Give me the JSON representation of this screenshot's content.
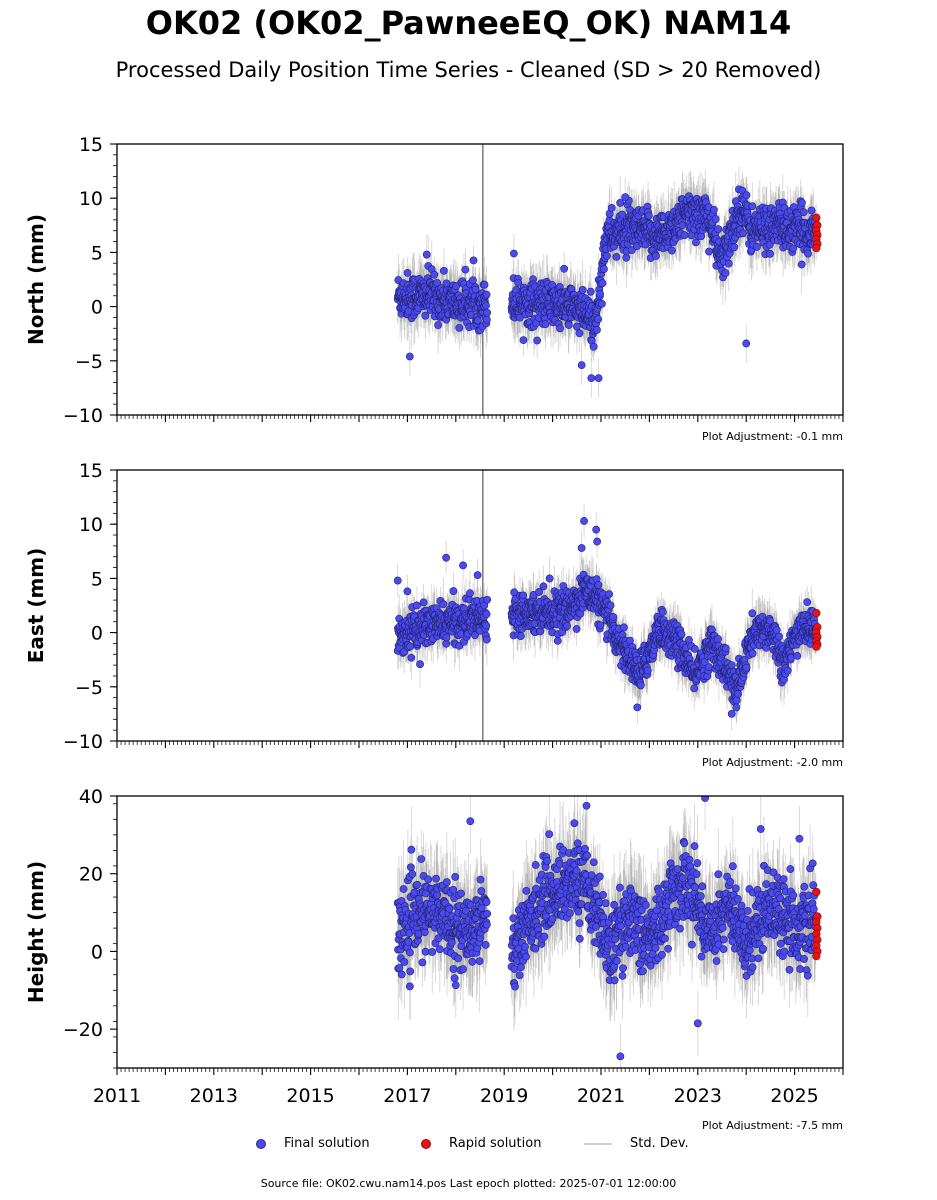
{
  "header": {
    "title": "OK02 (OK02_PawneeEQ_OK) NAM14",
    "subtitle": "Processed Daily Position Time Series - Cleaned (SD > 20 Removed)"
  },
  "legend": {
    "final": "Final solution",
    "rapid": "Rapid solution",
    "std": "Std. Dev."
  },
  "footer": {
    "source": "Source file: OK02.cwu.nam14.pos  Last epoch plotted: 2025-07-01 12:00:00"
  },
  "colors": {
    "final": "#4a4af0",
    "final_edge": "#22226a",
    "rapid": "#ee1111",
    "rapid_edge": "#7a0e0e",
    "std": "#999999"
  },
  "chart_data": [
    {
      "type": "scatter",
      "ylabel": "North (mm)",
      "adjustment": "Plot Adjustment: -0.1 mm",
      "xlim": [
        2011,
        2026
      ],
      "ylim": [
        -10,
        15
      ],
      "yticks": [
        -10,
        -5,
        0,
        5,
        10,
        15
      ],
      "xticks": [],
      "trend": [
        [
          2016.8,
          1.0
        ],
        [
          2017.5,
          1.0
        ],
        [
          2018.0,
          0.3
        ],
        [
          2018.6,
          0.3
        ],
        [
          2019.2,
          0.5
        ],
        [
          2019.8,
          0.3
        ],
        [
          2020.4,
          0.0
        ],
        [
          2020.9,
          -1.5
        ],
        [
          2021.1,
          6.5
        ],
        [
          2021.6,
          7.0
        ],
        [
          2022.2,
          6.5
        ],
        [
          2022.8,
          8.5
        ],
        [
          2023.2,
          8.5
        ],
        [
          2023.5,
          4.0
        ],
        [
          2023.9,
          9.5
        ],
        [
          2024.1,
          7.0
        ],
        [
          2024.6,
          7.5
        ],
        [
          2025.0,
          7.0
        ],
        [
          2025.45,
          7.0
        ]
      ],
      "noise": 1.3,
      "rapid": [
        8.2,
        7.5,
        7.0,
        6.6,
        6.2,
        5.8,
        5.4
      ],
      "outliers": [
        [
          2017.05,
          -4.6
        ],
        [
          2019.2,
          4.9
        ],
        [
          2020.6,
          -5.4
        ],
        [
          2020.8,
          -6.6
        ],
        [
          2020.95,
          -6.6
        ],
        [
          2024.0,
          -3.4
        ],
        [
          2017.4,
          4.8
        ],
        [
          2021.5,
          10.1
        ]
      ],
      "series": [
        {
          "name": "Final solution",
          "style": "points"
        },
        {
          "name": "Rapid solution",
          "style": "points"
        }
      ]
    },
    {
      "type": "scatter",
      "ylabel": "East (mm)",
      "adjustment": "Plot Adjustment: -2.0 mm",
      "xlim": [
        2011,
        2026
      ],
      "ylim": [
        -10,
        15
      ],
      "yticks": [
        -10,
        -5,
        0,
        5,
        10,
        15
      ],
      "xticks": [],
      "trend": [
        [
          2016.8,
          -0.2
        ],
        [
          2017.5,
          0.7
        ],
        [
          2018.0,
          1.0
        ],
        [
          2018.6,
          1.5
        ],
        [
          2019.2,
          2.0
        ],
        [
          2019.8,
          2.0
        ],
        [
          2020.3,
          2.0
        ],
        [
          2020.7,
          4.0
        ],
        [
          2021.0,
          2.5
        ],
        [
          2021.4,
          -1.0
        ],
        [
          2021.8,
          -4.0
        ],
        [
          2022.2,
          0.5
        ],
        [
          2022.6,
          -1.0
        ],
        [
          2022.9,
          -4.0
        ],
        [
          2023.3,
          -1.0
        ],
        [
          2023.5,
          -2.5
        ],
        [
          2023.8,
          -5.5
        ],
        [
          2024.1,
          -0.5
        ],
        [
          2024.5,
          0.5
        ],
        [
          2024.8,
          -3.0
        ],
        [
          2025.1,
          0.5
        ],
        [
          2025.45,
          0.3
        ]
      ],
      "noise": 1.1,
      "rapid": [
        1.8,
        0.5,
        0.0,
        -0.4,
        -0.8,
        -1.1,
        -1.3
      ],
      "outliers": [
        [
          2016.8,
          4.8
        ],
        [
          2017.0,
          3.8
        ],
        [
          2017.8,
          6.9
        ],
        [
          2018.15,
          6.2
        ],
        [
          2020.65,
          10.3
        ],
        [
          2020.6,
          7.8
        ],
        [
          2020.9,
          9.5
        ],
        [
          2020.92,
          8.4
        ],
        [
          2021.75,
          -6.9
        ],
        [
          2023.7,
          -7.5
        ],
        [
          2018.45,
          5.3
        ]
      ],
      "series": [
        {
          "name": "Final solution",
          "style": "points"
        },
        {
          "name": "Rapid solution",
          "style": "points"
        }
      ]
    },
    {
      "type": "scatter",
      "ylabel": "Height (mm)",
      "adjustment": "Plot Adjustment: -7.5 mm",
      "xlim": [
        2011,
        2026
      ],
      "ylim": [
        -30,
        40
      ],
      "yticks": [
        -20,
        0,
        20,
        40
      ],
      "xticks": [
        "2011",
        "2013",
        "2015",
        "2017",
        "2019",
        "2021",
        "2023",
        "2025"
      ],
      "xtick_values": [
        2011,
        2013,
        2015,
        2017,
        2019,
        2021,
        2023,
        2025
      ],
      "trend": [
        [
          2016.8,
          5.0
        ],
        [
          2017.3,
          10.0
        ],
        [
          2017.8,
          10.0
        ],
        [
          2018.2,
          4.0
        ],
        [
          2018.6,
          10.0
        ],
        [
          2019.2,
          0.0
        ],
        [
          2019.7,
          12.0
        ],
        [
          2020.3,
          18.0
        ],
        [
          2020.7,
          18.0
        ],
        [
          2021.2,
          0.0
        ],
        [
          2021.6,
          10.0
        ],
        [
          2022.0,
          2.0
        ],
        [
          2022.5,
          15.0
        ],
        [
          2022.8,
          18.0
        ],
        [
          2023.2,
          5.0
        ],
        [
          2023.6,
          12.0
        ],
        [
          2024.0,
          2.0
        ],
        [
          2024.4,
          12.0
        ],
        [
          2024.8,
          10.0
        ],
        [
          2025.1,
          5.0
        ],
        [
          2025.45,
          8.0
        ]
      ],
      "noise": 6.0,
      "rapid": [
        15.3,
        9.0,
        7.5,
        6.0,
        4.5,
        3.0,
        1.5,
        0.0,
        -1.2
      ],
      "outliers": [
        [
          2018.3,
          33.5
        ],
        [
          2020.7,
          37.5
        ],
        [
          2023.15,
          39.5
        ],
        [
          2020.45,
          33.0
        ],
        [
          2021.4,
          -27.0
        ],
        [
          2023.0,
          -18.5
        ],
        [
          2018.0,
          -8.7
        ],
        [
          2017.05,
          -9.0
        ],
        [
          2024.3,
          31.5
        ],
        [
          2025.1,
          29.0
        ]
      ],
      "series": [
        {
          "name": "Final solution",
          "style": "points"
        },
        {
          "name": "Rapid solution",
          "style": "points"
        }
      ]
    }
  ]
}
